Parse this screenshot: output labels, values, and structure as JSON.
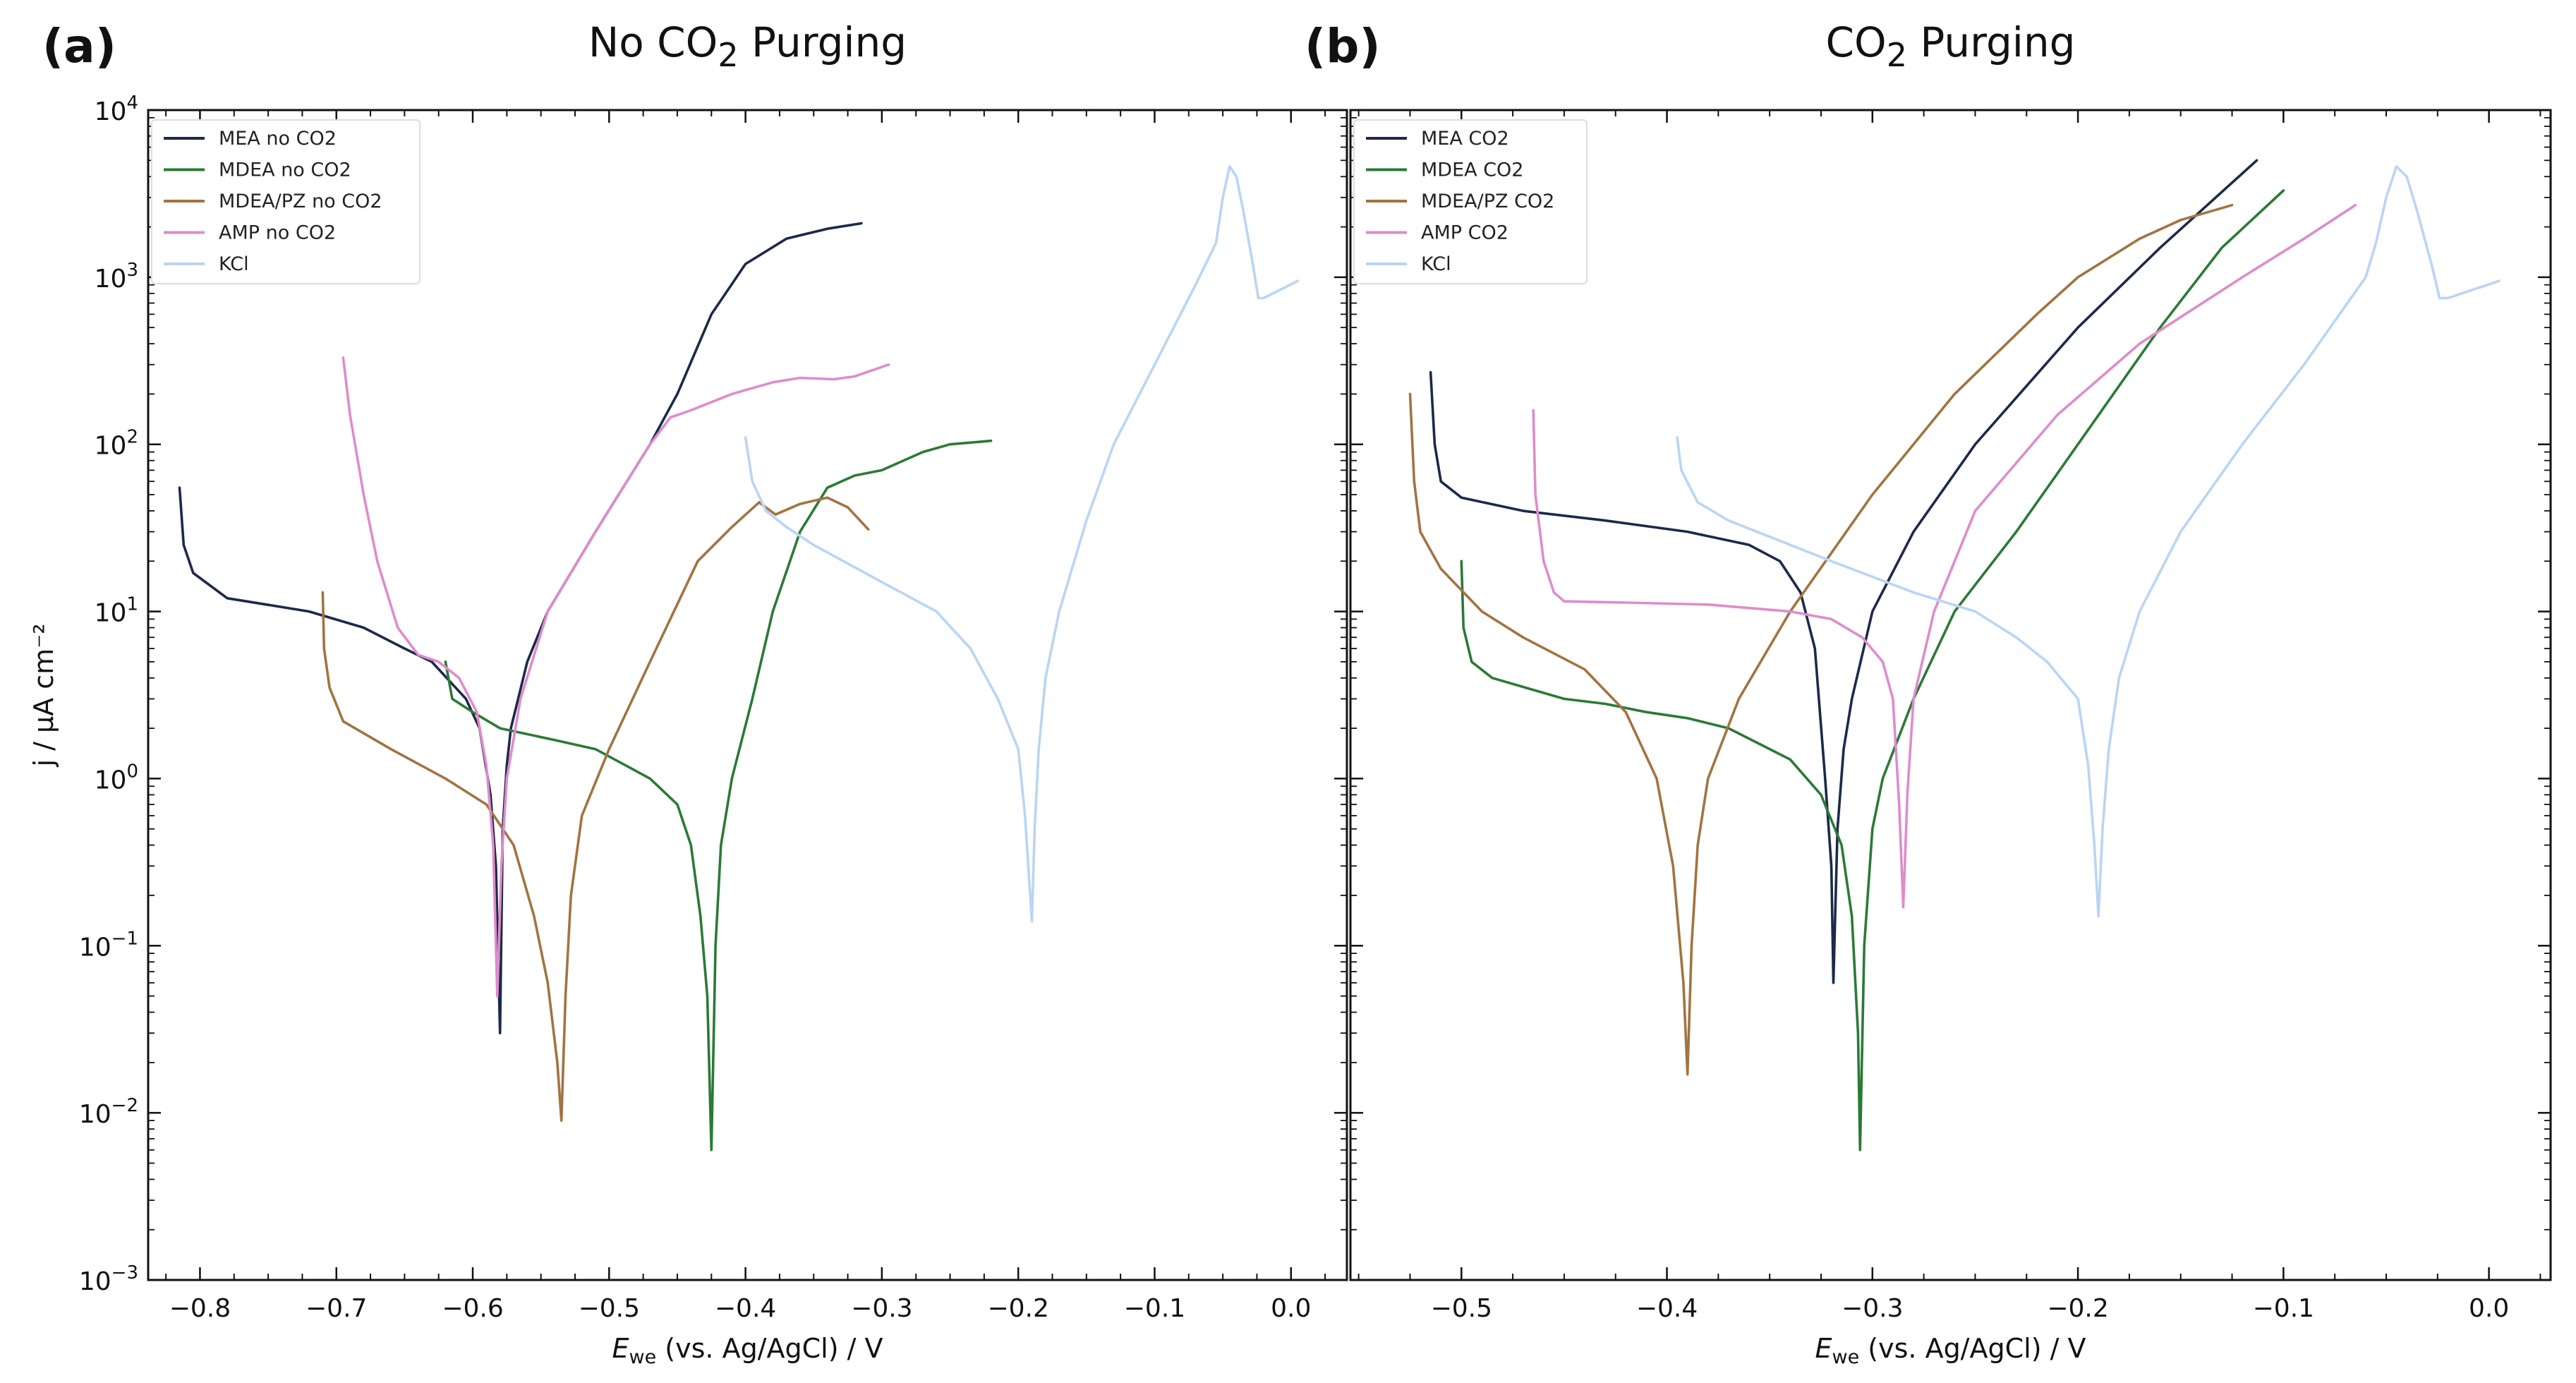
{
  "colors": {
    "MEA": "#1c2a4a",
    "MDEA": "#2b7a37",
    "MDEA/PZ": "#a27441",
    "AMP": "#de8ccb",
    "KCl": "#bad5f3"
  },
  "chart_data": [
    {
      "type": "line",
      "panel_label": "(a)",
      "title_pre": "No CO",
      "title_sub": "2",
      "title_post": " Purging",
      "xlabel_var": "E",
      "xlabel_sub": "we",
      "xlabel_rest": " (vs. Ag/AgCl) / V",
      "ylabel": "j / µA cm⁻²",
      "xlim": [
        -0.838,
        0.041
      ],
      "ylim": [
        0.001,
        10000
      ],
      "yscale": "log",
      "xticks": [
        -0.8,
        -0.7,
        -0.6,
        -0.5,
        -0.4,
        -0.3,
        -0.2,
        -0.1,
        0.0
      ],
      "xtick_labels": [
        "−0.8",
        "−0.7",
        "−0.6",
        "−0.5",
        "−0.4",
        "−0.3",
        "−0.2",
        "−0.1",
        "0.0"
      ],
      "yticks_exp": [
        "-3",
        "-2",
        "-1",
        "0",
        "1",
        "2",
        "3",
        "4"
      ],
      "legend_position": "top-left",
      "series": [
        {
          "name": "MEA no CO2",
          "color_key": "MEA",
          "x": [
            -0.815,
            -0.812,
            -0.805,
            -0.78,
            -0.72,
            -0.68,
            -0.65,
            -0.63,
            -0.605,
            -0.595,
            -0.587,
            -0.583,
            -0.58,
            -0.578,
            -0.575,
            -0.572,
            -0.56,
            -0.545,
            -0.51,
            -0.47,
            -0.45,
            -0.425,
            -0.4,
            -0.37,
            -0.34,
            -0.315
          ],
          "y": [
            55,
            25,
            17,
            12,
            10,
            8,
            6,
            5,
            3,
            2,
            0.8,
            0.3,
            0.03,
            0.5,
            1.2,
            2,
            5,
            10,
            30,
            100,
            200,
            600,
            1200,
            1700,
            1950,
            2100
          ]
        },
        {
          "name": "MDEA no CO2",
          "color_key": "MDEA",
          "x": [
            -0.62,
            -0.615,
            -0.6,
            -0.58,
            -0.54,
            -0.51,
            -0.47,
            -0.45,
            -0.44,
            -0.433,
            -0.428,
            -0.425,
            -0.422,
            -0.418,
            -0.41,
            -0.395,
            -0.38,
            -0.36,
            -0.34,
            -0.32,
            -0.3,
            -0.27,
            -0.25,
            -0.22
          ],
          "y": [
            5,
            3,
            2.5,
            2,
            1.7,
            1.5,
            1,
            0.7,
            0.4,
            0.15,
            0.05,
            0.006,
            0.1,
            0.4,
            1,
            3,
            10,
            30,
            55,
            65,
            70,
            90,
            100,
            105
          ]
        },
        {
          "name": "MDEA/PZ no CO2",
          "color_key": "MDEA/PZ",
          "x": [
            -0.71,
            -0.709,
            -0.705,
            -0.695,
            -0.66,
            -0.62,
            -0.59,
            -0.57,
            -0.555,
            -0.545,
            -0.538,
            -0.535,
            -0.532,
            -0.528,
            -0.52,
            -0.5,
            -0.47,
            -0.435,
            -0.41,
            -0.39,
            -0.378,
            -0.36,
            -0.34,
            -0.325,
            -0.31
          ],
          "y": [
            13,
            6,
            3.5,
            2.2,
            1.5,
            1,
            0.7,
            0.4,
            0.15,
            0.06,
            0.02,
            0.009,
            0.05,
            0.2,
            0.6,
            1.5,
            5,
            20,
            32,
            45,
            38,
            44,
            48,
            42,
            31
          ]
        },
        {
          "name": "AMP no CO2",
          "color_key": "AMP",
          "x": [
            -0.695,
            -0.69,
            -0.68,
            -0.67,
            -0.655,
            -0.64,
            -0.625,
            -0.61,
            -0.597,
            -0.59,
            -0.585,
            -0.582,
            -0.579,
            -0.575,
            -0.565,
            -0.545,
            -0.51,
            -0.47,
            -0.455,
            -0.44,
            -0.41,
            -0.38,
            -0.36,
            -0.335,
            -0.32,
            -0.295
          ],
          "y": [
            330,
            150,
            50,
            20,
            8,
            5.5,
            5,
            4,
            2.5,
            1.2,
            0.4,
            0.05,
            0.3,
            1,
            3,
            10,
            30,
            100,
            145,
            160,
            200,
            235,
            250,
            245,
            255,
            300
          ]
        },
        {
          "name": "KCl",
          "color_key": "KCl",
          "x": [
            -0.4,
            -0.395,
            -0.385,
            -0.37,
            -0.35,
            -0.3,
            -0.26,
            -0.235,
            -0.215,
            -0.2,
            -0.195,
            -0.192,
            -0.19,
            -0.188,
            -0.185,
            -0.18,
            -0.17,
            -0.15,
            -0.13,
            -0.1,
            -0.07,
            -0.055,
            -0.05,
            -0.045,
            -0.04,
            -0.035,
            -0.028,
            -0.024,
            -0.02,
            0.005
          ],
          "y": [
            110,
            60,
            40,
            32,
            25,
            15,
            10,
            6,
            3,
            1.5,
            0.6,
            0.25,
            0.14,
            0.5,
            1.5,
            4,
            10,
            35,
            100,
            300,
            900,
            1600,
            3000,
            4600,
            4000,
            2500,
            1200,
            750,
            750,
            950
          ]
        }
      ]
    },
    {
      "type": "line",
      "panel_label": "(b)",
      "title_pre": "CO",
      "title_sub": "2",
      "title_post": " Purging",
      "xlabel_var": "E",
      "xlabel_sub": "we",
      "xlabel_rest": " (vs. Ag/AgCl) / V",
      "xlim": [
        -0.554,
        0.03
      ],
      "ylim": [
        0.001,
        10000
      ],
      "yscale": "log",
      "xticks": [
        -0.5,
        -0.4,
        -0.3,
        -0.2,
        -0.1,
        0.0
      ],
      "xtick_labels": [
        "−0.5",
        "−0.4",
        "−0.3",
        "−0.2",
        "−0.1",
        "0.0"
      ],
      "legend_position": "top-left",
      "series": [
        {
          "name": "MEA CO2",
          "color_key": "MEA",
          "x": [
            -0.515,
            -0.513,
            -0.51,
            -0.5,
            -0.47,
            -0.43,
            -0.39,
            -0.36,
            -0.345,
            -0.335,
            -0.328,
            -0.323,
            -0.32,
            -0.319,
            -0.317,
            -0.314,
            -0.31,
            -0.3,
            -0.28,
            -0.25,
            -0.2,
            -0.16,
            -0.113
          ],
          "y": [
            270,
            100,
            60,
            48,
            40,
            35,
            30,
            25,
            20,
            13,
            6,
            1,
            0.3,
            0.06,
            0.5,
            1.5,
            3,
            10,
            30,
            100,
            500,
            1500,
            5000
          ]
        },
        {
          "name": "MDEA CO2",
          "color_key": "MDEA",
          "x": [
            -0.5,
            -0.499,
            -0.495,
            -0.485,
            -0.45,
            -0.43,
            -0.41,
            -0.39,
            -0.37,
            -0.34,
            -0.325,
            -0.315,
            -0.31,
            -0.307,
            -0.306,
            -0.304,
            -0.3,
            -0.295,
            -0.28,
            -0.26,
            -0.23,
            -0.2,
            -0.16,
            -0.13,
            -0.1
          ],
          "y": [
            20,
            8,
            5,
            4,
            3,
            2.8,
            2.5,
            2.3,
            2,
            1.3,
            0.8,
            0.4,
            0.15,
            0.03,
            0.006,
            0.1,
            0.5,
            1,
            3,
            10,
            30,
            100,
            500,
            1500,
            3300
          ]
        },
        {
          "name": "MDEA/PZ CO2",
          "color_key": "MDEA/PZ",
          "x": [
            -0.525,
            -0.523,
            -0.52,
            -0.51,
            -0.49,
            -0.47,
            -0.44,
            -0.42,
            -0.405,
            -0.397,
            -0.392,
            -0.39,
            -0.388,
            -0.385,
            -0.38,
            -0.365,
            -0.34,
            -0.3,
            -0.26,
            -0.22,
            -0.2,
            -0.17,
            -0.15,
            -0.125
          ],
          "y": [
            200,
            60,
            30,
            18,
            10,
            7,
            4.5,
            2.5,
            1,
            0.3,
            0.06,
            0.017,
            0.1,
            0.4,
            1,
            3,
            10,
            50,
            200,
            600,
            1000,
            1700,
            2200,
            2700
          ]
        },
        {
          "name": "AMP CO2",
          "color_key": "AMP",
          "x": [
            -0.465,
            -0.464,
            -0.46,
            -0.455,
            -0.45,
            -0.42,
            -0.38,
            -0.34,
            -0.32,
            -0.305,
            -0.295,
            -0.29,
            -0.287,
            -0.285,
            -0.283,
            -0.28,
            -0.27,
            -0.25,
            -0.21,
            -0.17,
            -0.12,
            -0.09,
            -0.065
          ],
          "y": [
            160,
            50,
            20,
            13,
            11.5,
            11.3,
            11,
            10,
            9,
            7,
            5,
            3,
            0.7,
            0.17,
            0.8,
            3,
            10,
            40,
            150,
            400,
            1000,
            1700,
            2700
          ]
        },
        {
          "name": "KCl",
          "color_key": "KCl",
          "x": [
            -0.395,
            -0.393,
            -0.385,
            -0.37,
            -0.35,
            -0.32,
            -0.28,
            -0.25,
            -0.23,
            -0.215,
            -0.2,
            -0.195,
            -0.192,
            -0.19,
            -0.188,
            -0.185,
            -0.18,
            -0.17,
            -0.15,
            -0.12,
            -0.09,
            -0.06,
            -0.055,
            -0.05,
            -0.045,
            -0.04,
            -0.035,
            -0.028,
            -0.024,
            -0.02,
            0.005
          ],
          "y": [
            110,
            70,
            45,
            35,
            28,
            20,
            13,
            10,
            7,
            5,
            3,
            1.2,
            0.4,
            0.15,
            0.5,
            1.5,
            4,
            10,
            30,
            100,
            300,
            1000,
            1600,
            3000,
            4600,
            4000,
            2500,
            1200,
            750,
            750,
            950
          ]
        }
      ]
    }
  ]
}
